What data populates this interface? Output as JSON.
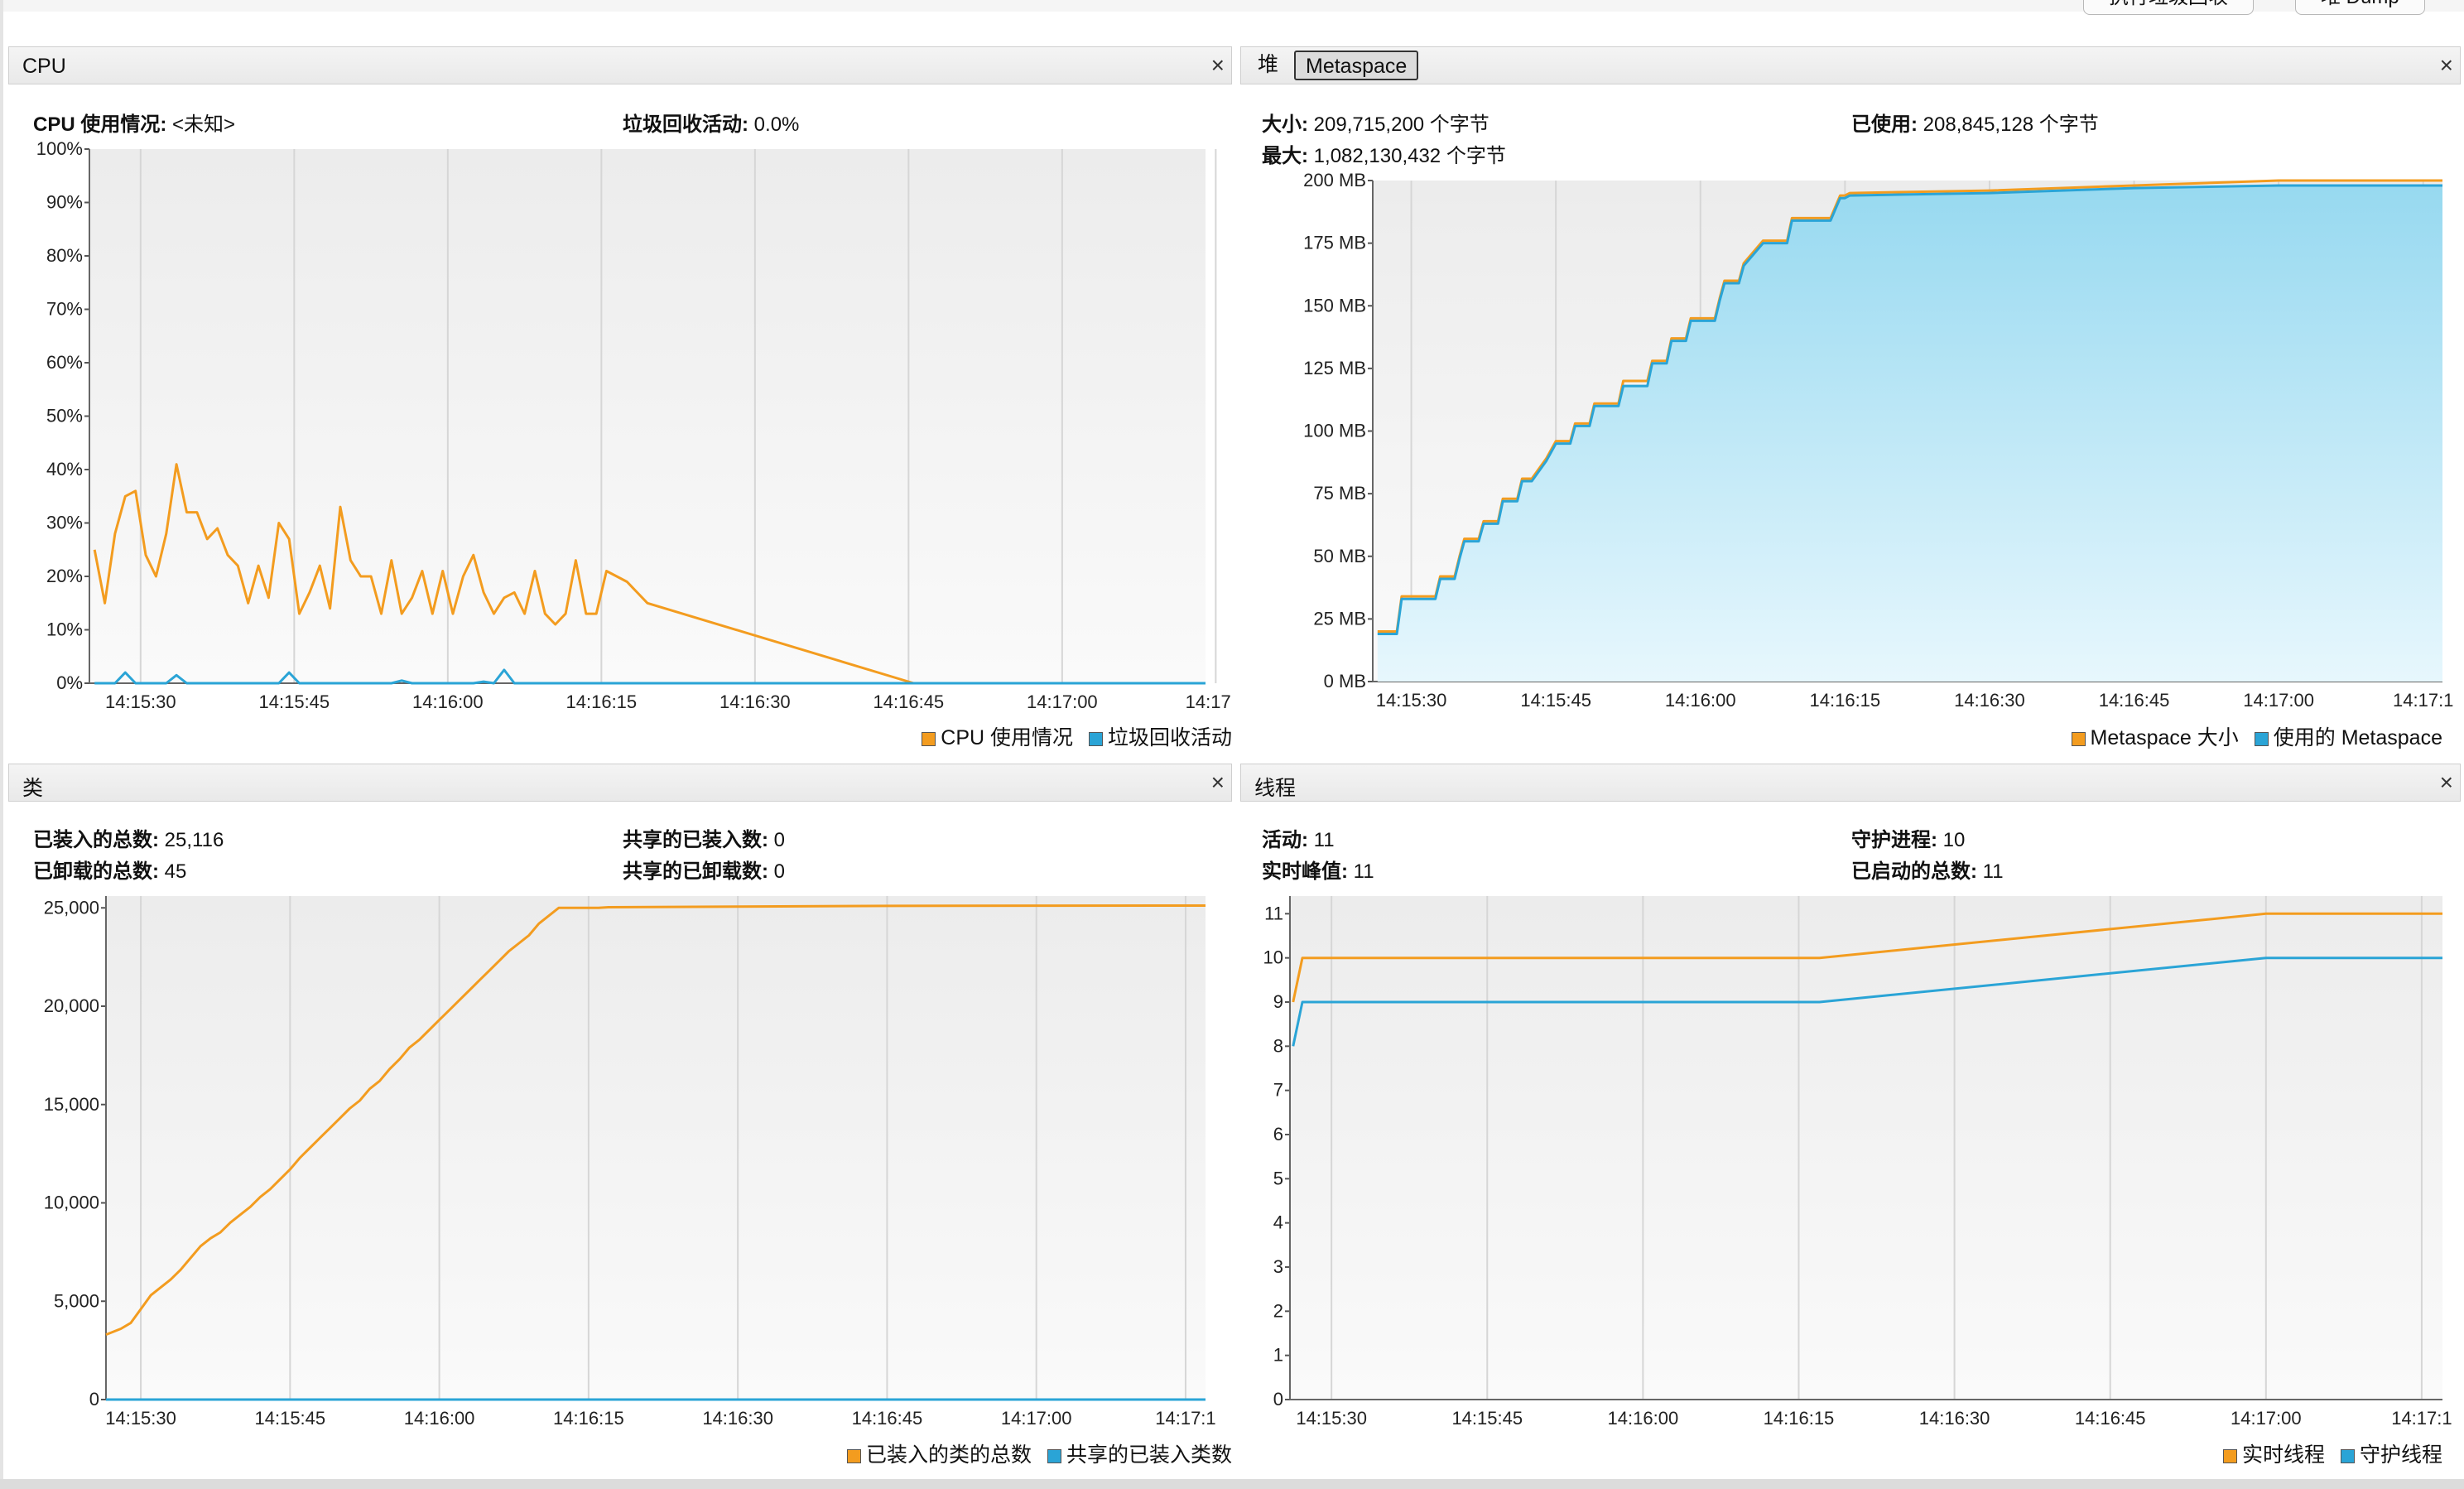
{
  "toolbar": {
    "gc_button": "执行垃圾回收",
    "dump_button": "堆 Dump"
  },
  "colors": {
    "orange": "#f39c1f",
    "blue": "#2aa4d6",
    "fill_top": "#97d9f0",
    "fill_bottom": "#e7f7fd"
  },
  "panels": {
    "cpu": {
      "title": "CPU",
      "close": "×",
      "info_left_label": "CPU 使用情况:",
      "info_left_value": "<未知>",
      "info_right_label": "垃圾回收活动:",
      "info_right_value": "0.0%",
      "legend": [
        "CPU 使用情况",
        "垃圾回收活动"
      ]
    },
    "heap": {
      "tabs": [
        "堆",
        "Metaspace"
      ],
      "active_tab": "Metaspace",
      "close": "×",
      "size_label": "大小:",
      "size_value": "209,715,200 个字节",
      "max_label": "最大:",
      "max_value": "1,082,130,432 个字节",
      "used_label": "已使用:",
      "used_value": "208,845,128 个字节",
      "legend": [
        "Metaspace 大小",
        "使用的 Metaspace"
      ]
    },
    "classes": {
      "title": "类",
      "close": "×",
      "loaded_label": "已装入的总数:",
      "loaded_value": "25,116",
      "unloaded_label": "已卸载的总数:",
      "unloaded_value": "45",
      "shared_loaded_label": "共享的已装入数:",
      "shared_loaded_value": "0",
      "shared_unloaded_label": "共享的已卸载数:",
      "shared_unloaded_value": "0",
      "legend": [
        "已装入的类的总数",
        "共享的已装入类数"
      ]
    },
    "threads": {
      "title": "线程",
      "close": "×",
      "live_label": "活动:",
      "live_value": "11",
      "peak_label": "实时峰值:",
      "peak_value": "11",
      "daemon_label": "守护进程:",
      "daemon_value": "10",
      "started_label": "已启动的总数:",
      "started_value": "11",
      "legend": [
        "实时线程",
        "守护线程"
      ]
    }
  },
  "chart_data": [
    {
      "id": "cpu",
      "type": "line",
      "x_ticks": [
        "14:15:30",
        "14:15:45",
        "14:16:00",
        "14:16:15",
        "14:16:30",
        "14:16:45",
        "14:17:00",
        "14:17:1"
      ],
      "y_ticks": [
        "0%",
        "10%",
        "20%",
        "30%",
        "40%",
        "50%",
        "60%",
        "70%",
        "80%",
        "90%",
        "100%"
      ],
      "ylim": [
        0,
        100
      ],
      "xlim": [
        -5,
        104
      ],
      "series": [
        {
          "name": "CPU 使用情况",
          "color": "#f39c1f",
          "x": [
            -4.5,
            -3.5,
            -2.5,
            -1.5,
            -0.5,
            0.5,
            1.5,
            2.5,
            3.5,
            4.5,
            5.5,
            6.5,
            7.5,
            8.5,
            9.5,
            10.5,
            11.5,
            12.5,
            13.5,
            14.5,
            15.5,
            16.5,
            17.5,
            18.5,
            19.5,
            20.5,
            21.5,
            22.5,
            23.5,
            24.5,
            25.5,
            26.5,
            27.5,
            28.5,
            29.5,
            30.5,
            31.5,
            32.5,
            33.5,
            34.5,
            35.5,
            36.5,
            37.5,
            38.5,
            39.5,
            40.5,
            41.5,
            42.5,
            43.5,
            44.5,
            45.5,
            46.5,
            47.5,
            48.5,
            49.5,
            75.5,
            104
          ],
          "y": [
            25,
            15,
            28,
            35,
            36,
            24,
            20,
            28,
            41,
            32,
            32,
            27,
            29,
            24,
            22,
            15,
            22,
            16,
            30,
            27,
            13,
            17,
            22,
            14,
            33,
            23,
            20,
            20,
            13,
            23,
            13,
            16,
            21,
            13,
            21,
            13,
            20,
            24,
            17,
            13,
            16,
            17,
            13,
            21,
            13,
            11,
            13,
            23,
            13,
            13,
            21,
            20,
            19,
            17,
            15,
            0,
            0
          ]
        },
        {
          "name": "垃圾回收活动",
          "color": "#2aa4d6",
          "x": [
            -4.5,
            -2.5,
            -1.5,
            -0.5,
            2.5,
            3.5,
            4.5,
            13.5,
            14.5,
            15.5,
            24.5,
            25.5,
            26.5,
            32.5,
            33.5,
            34.5,
            35.5,
            36.5,
            104
          ],
          "y": [
            0,
            0,
            2,
            0,
            0,
            1.5,
            0,
            0,
            2,
            0,
            0,
            0.5,
            0,
            0,
            0.3,
            0,
            2.5,
            0,
            0
          ]
        }
      ]
    },
    {
      "id": "metaspace",
      "type": "area",
      "x_ticks": [
        "14:15:30",
        "14:15:45",
        "14:16:00",
        "14:16:15",
        "14:16:30",
        "14:16:45",
        "14:17:00",
        "14:17:1"
      ],
      "y_ticks": [
        "0 MB",
        "25 MB",
        "50 MB",
        "75 MB",
        "100 MB",
        "125 MB",
        "150 MB",
        "175 MB",
        "200 MB"
      ],
      "ylim": [
        0,
        200
      ],
      "xlim": [
        -4,
        107
      ],
      "series": [
        {
          "name": "Metaspace 大小",
          "color": "#f39c1f",
          "x": [
            -3.5,
            -1.5,
            -1,
            1,
            1.5,
            2.5,
            3,
            3.5,
            4.5,
            5,
            5.5,
            6.5,
            7,
            7.5,
            8.5,
            9,
            9.5,
            10.5,
            11,
            11.5,
            12.5,
            14,
            15,
            15.5,
            16.5,
            17,
            17.5,
            18.5,
            19,
            19.5,
            21.5,
            22,
            22.5,
            24.5,
            25,
            25.5,
            26.5,
            27,
            27.5,
            28.5,
            29,
            29.5,
            31.5,
            32,
            32.5,
            33.5,
            34,
            34.5,
            36.5,
            37,
            37.5,
            38.5,
            39,
            39.5,
            42.5,
            43,
            43.5,
            44.5,
            45,
            45.5,
            60,
            75,
            90,
            107
          ],
          "y": [
            20,
            20,
            34,
            34,
            34,
            34,
            42,
            42,
            42,
            50,
            57,
            57,
            57,
            64,
            64,
            64,
            73,
            73,
            73,
            81,
            81,
            89,
            96,
            96,
            96,
            103,
            103,
            103,
            111,
            111,
            111,
            120,
            120,
            120,
            128,
            128,
            128,
            137,
            137,
            137,
            145,
            145,
            145,
            153,
            160,
            160,
            160,
            167,
            176,
            176,
            176,
            176,
            176,
            185,
            185,
            185,
            185,
            194,
            194,
            195,
            196,
            198,
            200,
            200
          ]
        },
        {
          "name": "使用的 Metaspace",
          "color": "#2aa4d6",
          "x": [
            -3.5,
            -1.5,
            -1,
            1,
            1.5,
            2.5,
            3,
            3.5,
            4.5,
            5,
            5.5,
            6.5,
            7,
            7.5,
            8.5,
            9,
            9.5,
            10.5,
            11,
            11.5,
            12.5,
            14,
            15,
            15.5,
            16.5,
            17,
            17.5,
            18.5,
            19,
            19.5,
            21.5,
            22,
            22.5,
            24.5,
            25,
            25.5,
            26.5,
            27,
            27.5,
            28.5,
            29,
            29.5,
            31.5,
            32,
            32.5,
            33.5,
            34,
            34.5,
            36.5,
            37,
            37.5,
            38.5,
            39,
            39.5,
            42.5,
            43,
            43.5,
            44.5,
            45,
            45.5,
            60,
            75,
            90,
            107
          ],
          "y": [
            19,
            19,
            33,
            33,
            33,
            33,
            41,
            41,
            41,
            49,
            56,
            56,
            56,
            63,
            63,
            63,
            72,
            72,
            72,
            80,
            80,
            88,
            95,
            95,
            95,
            102,
            102,
            102,
            110,
            110,
            110,
            118,
            118,
            118,
            127,
            127,
            127,
            136,
            136,
            136,
            144,
            144,
            144,
            152,
            159,
            159,
            159,
            166,
            175,
            175,
            175,
            175,
            175,
            184,
            184,
            184,
            184,
            193,
            193,
            194,
            195,
            197,
            198,
            198
          ]
        }
      ]
    },
    {
      "id": "classes",
      "type": "line",
      "x_ticks": [
        "14:15:30",
        "14:15:45",
        "14:16:00",
        "14:16:15",
        "14:16:30",
        "14:16:45",
        "14:17:00",
        "14:17:1"
      ],
      "y_ticks": [
        "0",
        "5,000",
        "10,000",
        "15,000",
        "20,000",
        "25,000"
      ],
      "ylim": [
        0,
        25600
      ],
      "xlim": [
        -3.5,
        107
      ],
      "series": [
        {
          "name": "已装入的类的总数",
          "color": "#f39c1f",
          "x": [
            -3.5,
            -2,
            -1,
            0,
            1,
            2,
            3,
            4,
            5,
            6,
            7,
            8,
            9,
            10,
            11,
            12,
            13,
            14,
            15,
            16,
            17,
            18,
            19,
            20,
            21,
            22,
            23,
            24,
            25,
            26,
            27,
            28,
            29,
            30,
            31,
            32,
            33,
            34,
            35,
            36,
            37,
            38,
            39,
            40,
            41,
            42,
            43,
            44,
            45,
            46,
            47,
            60,
            75,
            90,
            107
          ],
          "y": [
            3300,
            3600,
            3900,
            4600,
            5300,
            5700,
            6100,
            6600,
            7200,
            7800,
            8200,
            8500,
            9000,
            9400,
            9800,
            10300,
            10700,
            11200,
            11700,
            12300,
            12800,
            13300,
            13800,
            14300,
            14800,
            15200,
            15800,
            16200,
            16800,
            17300,
            17900,
            18300,
            18800,
            19300,
            19800,
            20300,
            20800,
            21300,
            21800,
            22300,
            22800,
            23200,
            23600,
            24200,
            24600,
            25000,
            25000,
            25000,
            25000,
            25000,
            25030,
            25060,
            25100,
            25110,
            25116
          ]
        },
        {
          "name": "共享的已装入类数",
          "color": "#2aa4d6",
          "x": [
            -3.5,
            107
          ],
          "y": [
            0,
            0
          ]
        }
      ]
    },
    {
      "id": "threads",
      "type": "line",
      "x_ticks": [
        "14:15:30",
        "14:15:45",
        "14:16:00",
        "14:16:15",
        "14:16:30",
        "14:16:45",
        "14:17:00",
        "14:17:1"
      ],
      "y_ticks": [
        "0",
        "1",
        "2",
        "3",
        "4",
        "5",
        "6",
        "7",
        "8",
        "9",
        "10",
        "11"
      ],
      "ylim": [
        0,
        11.4
      ],
      "xlim": [
        -4,
        107
      ],
      "series": [
        {
          "name": "实时线程",
          "color": "#f39c1f",
          "x": [
            -3.7,
            -2.8,
            47,
            90,
            107
          ],
          "y": [
            9,
            10,
            10,
            11,
            11
          ]
        },
        {
          "name": "守护线程",
          "color": "#2aa4d6",
          "x": [
            -3.7,
            -2.8,
            47,
            90,
            107
          ],
          "y": [
            8,
            9,
            9,
            10,
            10
          ]
        }
      ]
    }
  ]
}
